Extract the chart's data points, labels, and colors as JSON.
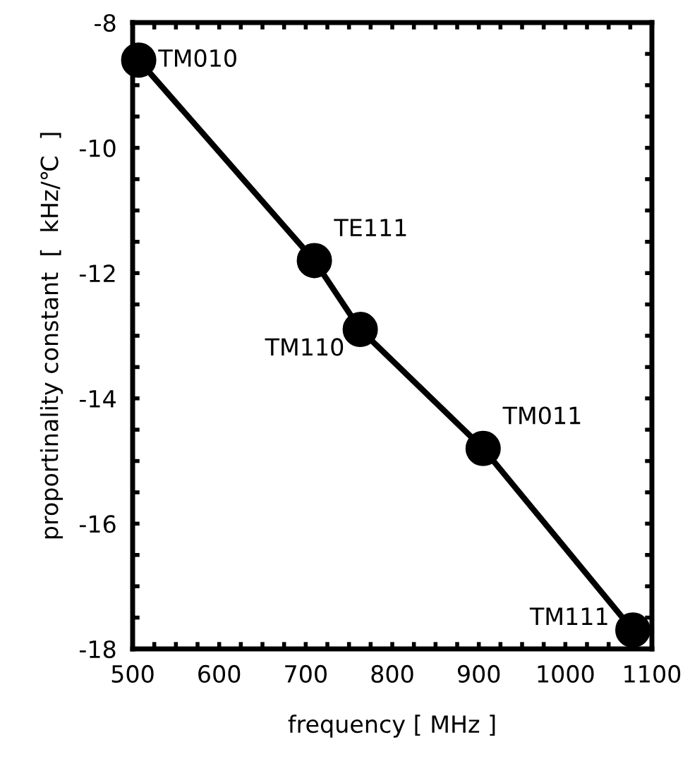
{
  "chart_data": {
    "type": "line",
    "xlabel": "frequency [ MHz ]",
    "ylabel": "proportinality constant  [  kHz/℃  ]",
    "x": [
      507,
      710,
      763,
      905,
      1078
    ],
    "series": [
      {
        "color": "#000000",
        "values": [
          -8.6,
          -11.8,
          -12.9,
          -14.8,
          -17.7
        ]
      }
    ],
    "marker": "circle",
    "line_style": "solid",
    "grid": false,
    "annotations": [
      {
        "text": "TM010",
        "x": 507,
        "y": -8.6
      },
      {
        "text": "TE111",
        "x": 710,
        "y": -11.8
      },
      {
        "text": "TM110",
        "x": 763,
        "y": -12.9
      },
      {
        "text": "TM011",
        "x": 905,
        "y": -14.8
      },
      {
        "text": "TM111",
        "x": 1078,
        "y": -17.7
      }
    ],
    "xlim": [
      500,
      1100
    ],
    "ylim": [
      -18,
      -8
    ],
    "xticks": [
      500,
      {
        "value": 525,
        "label": null
      },
      {
        "value": 550,
        "label": null
      },
      {
        "value": 575,
        "label": null
      },
      600,
      {
        "value": 625,
        "label": null
      },
      {
        "value": 650,
        "label": null
      },
      {
        "value": 675,
        "label": null
      },
      700,
      {
        "value": 725,
        "label": null
      },
      {
        "value": 750,
        "label": null
      },
      {
        "value": 775,
        "label": null
      },
      800,
      {
        "value": 825,
        "label": null
      },
      {
        "value": 850,
        "label": null
      },
      {
        "value": 875,
        "label": null
      },
      900,
      {
        "value": 925,
        "label": null
      },
      {
        "value": 950,
        "label": null
      },
      {
        "value": 975,
        "label": null
      },
      1000,
      {
        "value": 1025,
        "label": null
      },
      {
        "value": 1050,
        "label": null
      },
      {
        "value": 1075,
        "label": null
      },
      1100
    ],
    "yticks": [
      -18,
      {
        "value": -17.5,
        "label": null
      },
      {
        "value": -17,
        "label": null
      },
      {
        "value": -16.5,
        "label": null
      },
      -16,
      {
        "value": -15.5,
        "label": null
      },
      {
        "value": -15,
        "label": null
      },
      {
        "value": -14.5,
        "label": null
      },
      -14,
      {
        "value": -13.5,
        "label": null
      },
      {
        "value": -13,
        "label": null
      },
      {
        "value": -12.5,
        "label": null
      },
      -12,
      {
        "value": -11.5,
        "label": null
      },
      {
        "value": -11,
        "label": null
      },
      {
        "value": -10.5,
        "label": null
      },
      -10,
      {
        "value": -9.5,
        "label": null
      },
      {
        "value": -9,
        "label": null
      },
      {
        "value": -8.5,
        "label": null
      },
      -8
    ]
  }
}
